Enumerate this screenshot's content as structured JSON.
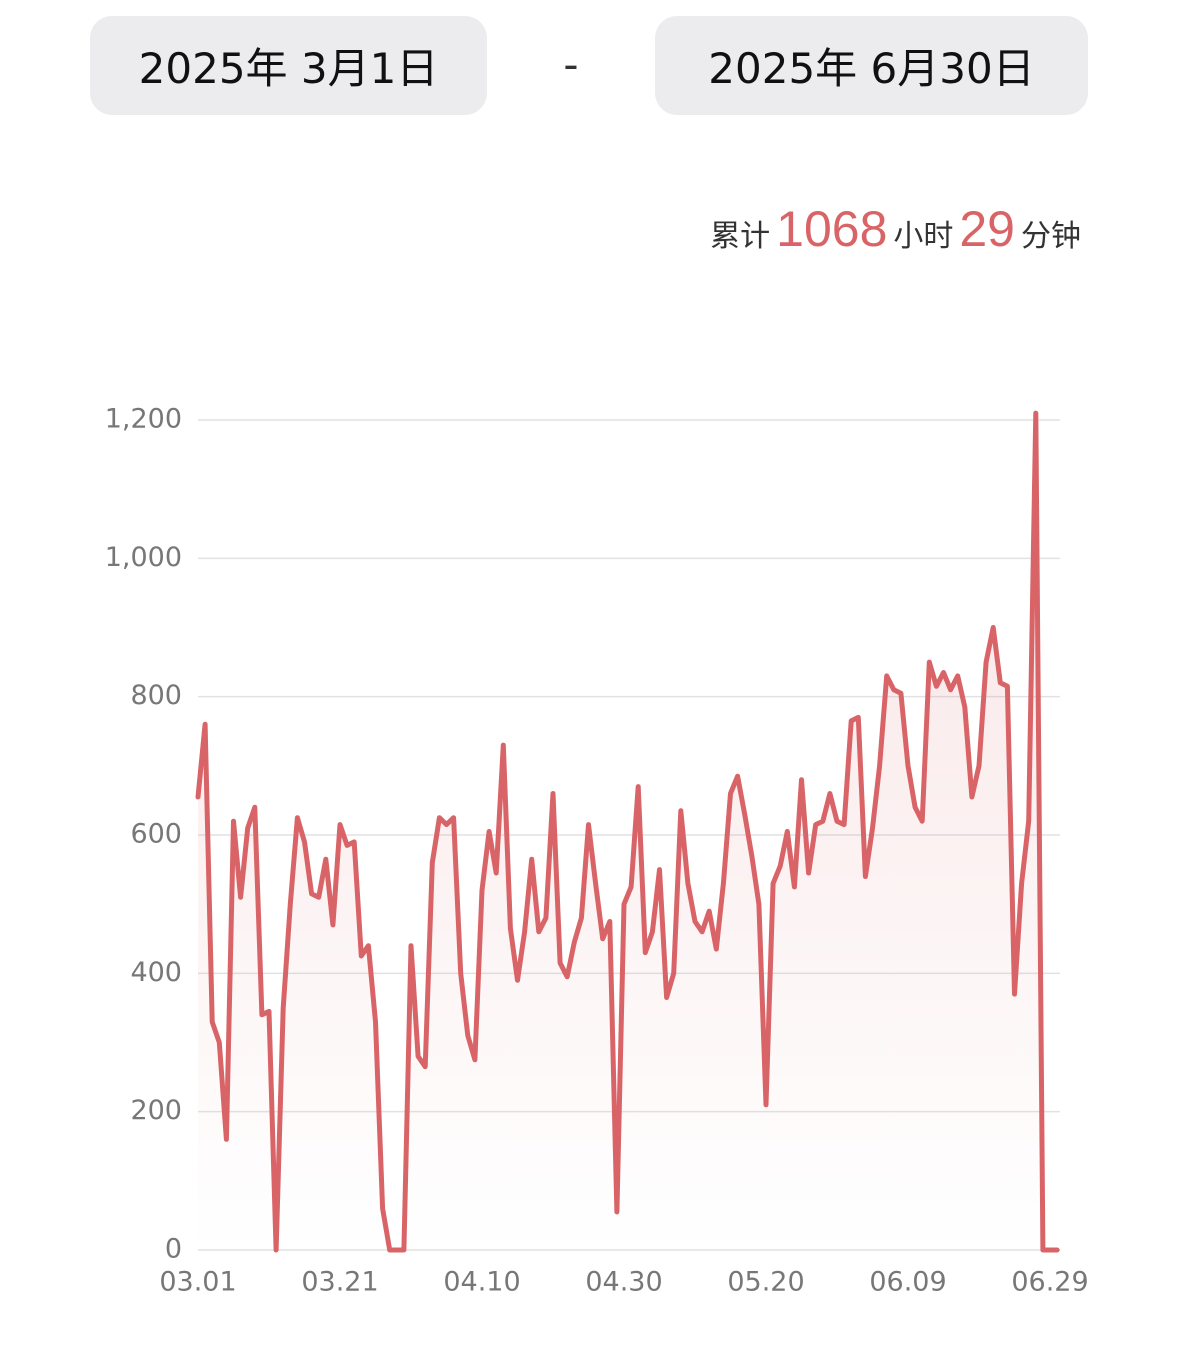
{
  "date_range": {
    "start": "2025年 3月1日",
    "separator": "-",
    "end": "2025年 6月30日"
  },
  "summary": {
    "prefix": "累计",
    "hours": "1068",
    "hours_unit": "小时",
    "minutes": "29",
    "minutes_unit": "分钟"
  },
  "chart_data": {
    "type": "line",
    "categories": [
      "03.01",
      null,
      null,
      null,
      null,
      null,
      null,
      null,
      null,
      null,
      null,
      null,
      null,
      null,
      null,
      null,
      null,
      null,
      null,
      null,
      "03.21",
      null,
      null,
      null,
      null,
      null,
      null,
      null,
      null,
      null,
      null,
      null,
      null,
      null,
      null,
      null,
      null,
      null,
      null,
      null,
      "04.10",
      null,
      null,
      null,
      null,
      null,
      null,
      null,
      null,
      null,
      null,
      null,
      null,
      null,
      null,
      null,
      null,
      null,
      null,
      null,
      "04.30",
      null,
      null,
      null,
      null,
      null,
      null,
      null,
      null,
      null,
      null,
      null,
      null,
      null,
      null,
      null,
      null,
      null,
      null,
      null,
      "05.20",
      null,
      null,
      null,
      null,
      null,
      null,
      null,
      null,
      null,
      null,
      null,
      null,
      null,
      null,
      null,
      null,
      null,
      null,
      null,
      "06.09",
      null,
      null,
      null,
      null,
      null,
      null,
      null,
      null,
      null,
      null,
      null,
      null,
      null,
      null,
      null,
      null,
      null,
      null,
      null,
      "06.29",
      null
    ],
    "values": [
      655,
      760,
      330,
      300,
      160,
      620,
      510,
      610,
      640,
      340,
      345,
      0,
      350,
      500,
      625,
      590,
      515,
      510,
      565,
      470,
      615,
      585,
      590,
      425,
      440,
      330,
      60,
      0,
      0,
      0,
      440,
      280,
      265,
      560,
      625,
      615,
      625,
      400,
      310,
      275,
      520,
      605,
      545,
      730,
      465,
      390,
      460,
      565,
      460,
      480,
      660,
      415,
      395,
      445,
      480,
      615,
      530,
      450,
      475,
      55,
      500,
      525,
      670,
      430,
      460,
      550,
      365,
      400,
      635,
      530,
      475,
      460,
      490,
      435,
      530,
      660,
      685,
      630,
      570,
      500,
      210,
      530,
      555,
      605,
      525,
      680,
      545,
      615,
      620,
      660,
      620,
      615,
      765,
      770,
      540,
      610,
      700,
      830,
      810,
      805,
      700,
      640,
      620,
      850,
      815,
      835,
      810,
      830,
      785,
      655,
      700,
      850,
      900,
      820,
      815,
      370,
      530,
      620,
      1210,
      0,
      0,
      0
    ],
    "color": "#d96468",
    "ylim": [
      0,
      1200
    ],
    "yticks": [
      0,
      200,
      400,
      600,
      800,
      {
        "value": 1000,
        "label": "1,000"
      },
      {
        "value": 1200,
        "label": "1,200"
      }
    ],
    "grid": true
  }
}
